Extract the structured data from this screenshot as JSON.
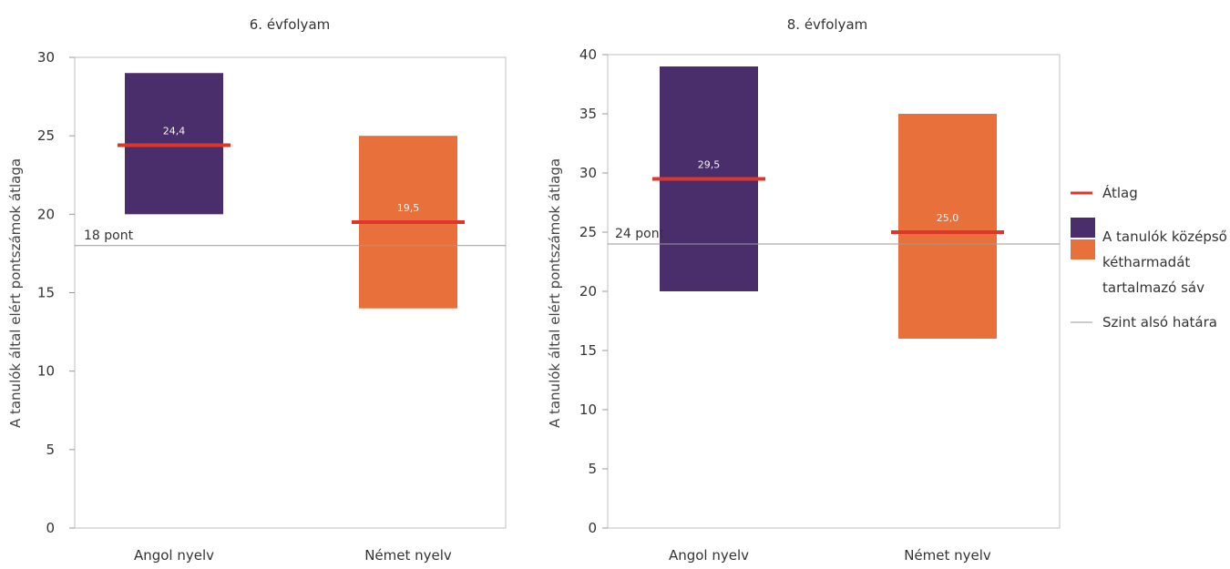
{
  "chart_data": [
    {
      "type": "bar",
      "title": "6. évfolyam",
      "ylabel": "A tanulók által elért pontszámok átlaga",
      "ylim": [
        0,
        30
      ],
      "yticks": [
        "0",
        "5",
        "10",
        "15",
        "20",
        "25",
        "30"
      ],
      "categories": [
        "Angol nyelv",
        "Német nyelv"
      ],
      "bands": [
        {
          "low": 20,
          "high": 29,
          "mean": 24.4,
          "label": "24,4",
          "color": "#4a2d6b"
        },
        {
          "low": 14,
          "high": 25,
          "mean": 19.5,
          "label": "19,5",
          "color": "#e8703a"
        }
      ],
      "threshold": {
        "value": 18,
        "label": "18 pont"
      }
    },
    {
      "type": "bar",
      "title": "8. évfolyam",
      "ylabel": "A tanulók által elért pontszámok átlaga",
      "ylim": [
        0,
        40
      ],
      "yticks": [
        "0",
        "5",
        "10",
        "15",
        "20",
        "25",
        "30",
        "35",
        "40"
      ],
      "categories": [
        "Angol nyelv",
        "Német nyelv"
      ],
      "bands": [
        {
          "low": 20,
          "high": 39,
          "mean": 29.5,
          "label": "29,5",
          "color": "#4a2d6b"
        },
        {
          "low": 16,
          "high": 35,
          "mean": 25.0,
          "label": "25,0",
          "color": "#e8703a"
        }
      ],
      "threshold": {
        "value": 24,
        "label": "24 pont"
      }
    }
  ],
  "legend": {
    "mean_label": "Átlag",
    "band_label_lines": [
      "A tanulók középső",
      "kétharmadát",
      "tartalmazó sáv"
    ],
    "threshold_label": "Szint alsó határa",
    "mean_color": "#e0352b",
    "band_colors": [
      "#4a2d6b",
      "#e8703a"
    ],
    "threshold_color": "#999999"
  }
}
